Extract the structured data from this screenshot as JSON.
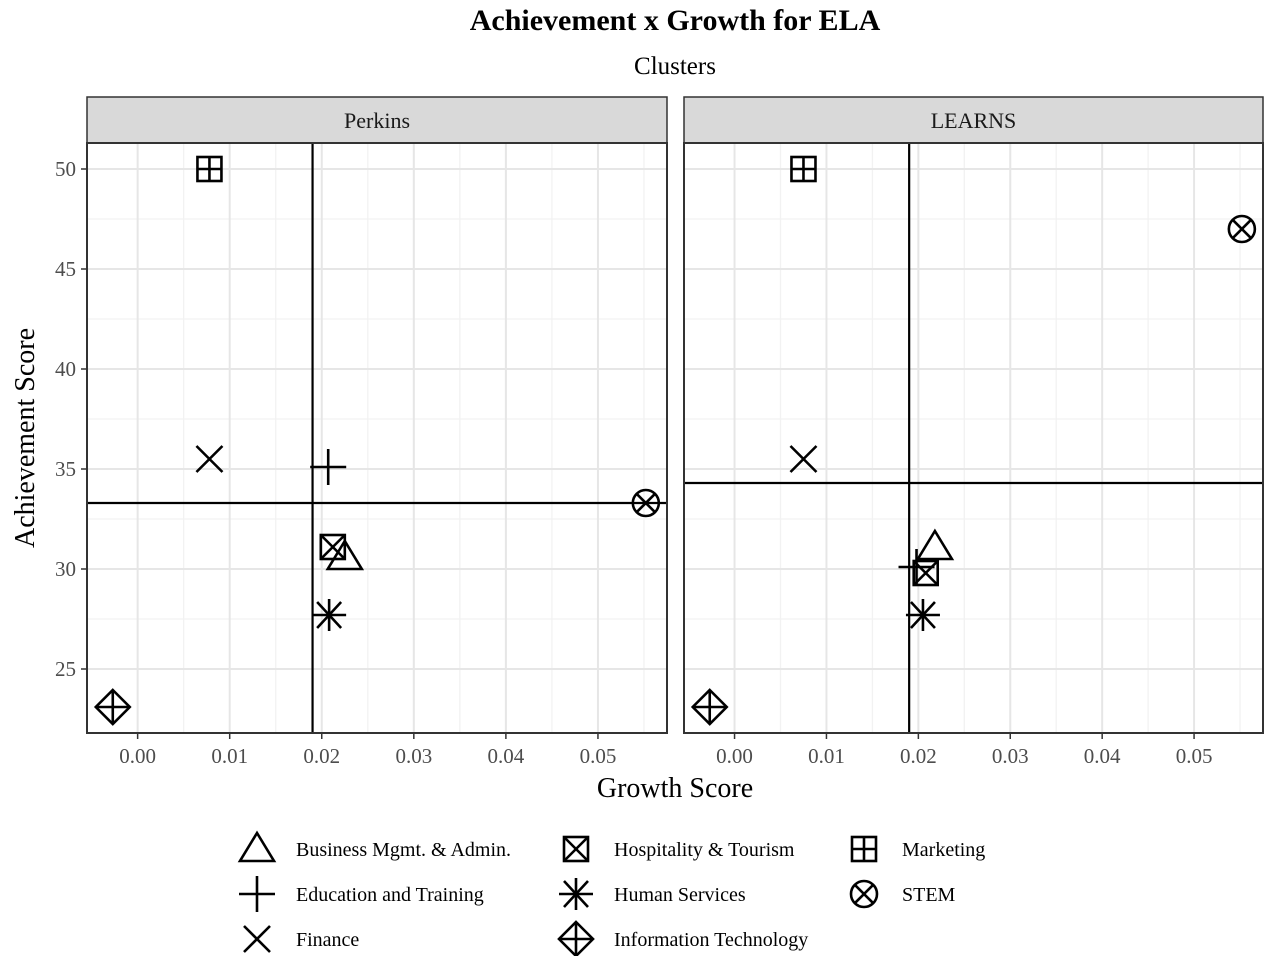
{
  "chart_data": {
    "type": "scatter",
    "title": "Achievement x Growth for ELA",
    "subtitle": "Clusters",
    "xlabel": "Growth Score",
    "ylabel": "Achievement Score",
    "xlim": [
      -0.0055,
      0.0575
    ],
    "ylim": [
      21.8,
      51.3
    ],
    "x_ticks": [
      0.0,
      0.01,
      0.02,
      0.03,
      0.04,
      0.05
    ],
    "x_tick_labels": [
      "0.00",
      "0.01",
      "0.02",
      "0.03",
      "0.04",
      "0.05"
    ],
    "y_ticks": [
      25,
      30,
      35,
      40,
      45,
      50
    ],
    "y_tick_labels": [
      "25",
      "30",
      "35",
      "40",
      "45",
      "50"
    ],
    "grid": true,
    "legend_position": "bottom",
    "series": [
      {
        "name": "Business Mgmt. & Admin.",
        "shape": "triangle"
      },
      {
        "name": "Education and Training",
        "shape": "plus"
      },
      {
        "name": "Finance",
        "shape": "cross"
      },
      {
        "name": "Hospitality & Tourism",
        "shape": "square-cross"
      },
      {
        "name": "Human Services",
        "shape": "asterisk"
      },
      {
        "name": "Information Technology",
        "shape": "diamond-plus"
      },
      {
        "name": "Marketing",
        "shape": "square-plus"
      },
      {
        "name": "STEM",
        "shape": "circle-cross"
      }
    ],
    "panels": [
      {
        "label": "Perkins",
        "vline_x": 0.019,
        "hline_y": 33.3,
        "points": [
          {
            "series": "Business Mgmt. & Admin.",
            "x": 0.0225,
            "y": 30.6
          },
          {
            "series": "Education and Training",
            "x": 0.0207,
            "y": 35.1
          },
          {
            "series": "Finance",
            "x": 0.0078,
            "y": 35.5
          },
          {
            "series": "Hospitality & Tourism",
            "x": 0.0212,
            "y": 31.1
          },
          {
            "series": "Human Services",
            "x": 0.0208,
            "y": 27.7
          },
          {
            "series": "Information Technology",
            "x": -0.0027,
            "y": 23.1
          },
          {
            "series": "Marketing",
            "x": 0.0078,
            "y": 50.0
          },
          {
            "series": "STEM",
            "x": 0.0552,
            "y": 33.3
          }
        ]
      },
      {
        "label": "LEARNS",
        "vline_x": 0.019,
        "hline_y": 34.3,
        "points": [
          {
            "series": "Business Mgmt. & Admin.",
            "x": 0.0218,
            "y": 31.1
          },
          {
            "series": "Education and Training",
            "x": 0.0198,
            "y": 30.1
          },
          {
            "series": "Finance",
            "x": 0.0075,
            "y": 35.5
          },
          {
            "series": "Hospitality & Tourism",
            "x": 0.0208,
            "y": 29.8
          },
          {
            "series": "Human Services",
            "x": 0.0205,
            "y": 27.7
          },
          {
            "series": "Information Technology",
            "x": -0.0027,
            "y": 23.1
          },
          {
            "series": "Marketing",
            "x": 0.0075,
            "y": 50.0
          },
          {
            "series": "STEM",
            "x": 0.0552,
            "y": 47.0
          }
        ]
      }
    ]
  }
}
